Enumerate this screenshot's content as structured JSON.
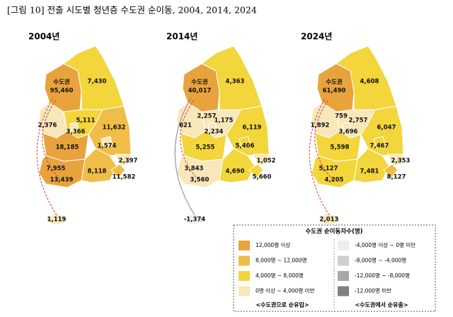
{
  "title": "[그림 10] 전출 시도별 청년층 수도권 순이동, 2004, 2014, 2024",
  "maps": [
    {
      "year": "2004년",
      "capital": {
        "label": "수도권",
        "value": "95,460",
        "color": "#e8a33d"
      },
      "regions": [
        "7,430",
        "2,376",
        null,
        "5,111",
        "3,366",
        "11,632",
        "1,574",
        "18,185",
        "2,397",
        "8,118",
        "11,582",
        "7,955",
        "13,439",
        "1,119"
      ],
      "colors": [
        "#f3d53c",
        "#f8e7b9",
        "#f8e7b9",
        "#f3d53c",
        "#f8e7b9",
        "#f0bd48",
        "#f8e7b9",
        "#e8a33d",
        "#f8e7b9",
        "#f0bd48",
        "#f0bd48",
        "#f3d53c",
        "#e8a33d",
        "#f8e7b9"
      ]
    },
    {
      "year": "2014년",
      "capital": {
        "label": "수도권",
        "value": "40,017",
        "color": "#e8a33d"
      },
      "regions": [
        "4,363",
        "621",
        "2,257",
        "1,175",
        "2,234",
        "6,119",
        "5,406",
        "5,255",
        "1,052",
        "4,690",
        "5,660",
        "3,843",
        "3,560",
        "-1,374"
      ],
      "colors": [
        "#f3d53c",
        "#f8e7b9",
        "#f8e7b9",
        "#f8e7b9",
        "#f8e7b9",
        "#f3d53c",
        "#f3d53c",
        "#f3d53c",
        "#f8e7b9",
        "#f3d53c",
        "#f3d53c",
        "#f8e7b9",
        "#f8e7b9",
        "#eeeeee"
      ]
    },
    {
      "year": "2024년",
      "capital": {
        "label": "수도권",
        "value": "61,490",
        "color": "#e8a33d"
      },
      "regions": [
        "4,608",
        "1,892",
        "759",
        "2,757",
        "3,696",
        "6,047",
        "7,467",
        "5,598",
        "2,353",
        "7,481",
        "8,127",
        "5,127",
        "4,205",
        "2,013"
      ],
      "colors": [
        "#f3d53c",
        "#f8e7b9",
        "#f8e7b9",
        "#f8e7b9",
        "#f8e7b9",
        "#f3d53c",
        "#f3d53c",
        "#f3d53c",
        "#f8e7b9",
        "#f3d53c",
        "#f0bd48",
        "#f3d53c",
        "#f3d53c",
        "#f8e7b9"
      ]
    }
  ],
  "legend": {
    "title": "수도권 순이동자수(명)",
    "inflow": {
      "items": [
        {
          "label": "12,000명 이상",
          "color": "#e8a33d"
        },
        {
          "label": "8,000명 ~ 12,000명",
          "color": "#f0bd48"
        },
        {
          "label": "4,000명 ~ 8,000명",
          "color": "#f3d53c"
        },
        {
          "label": "0명 이상 ~ 4,000명 미만",
          "color": "#f8e7b9"
        }
      ],
      "caption": "<수도권으로 순유입>"
    },
    "outflow": {
      "items": [
        {
          "label": "-4,000명 이상 ~ 0명 미만",
          "color": "#eeeeee"
        },
        {
          "label": "-8,000명 ~ -4,000명",
          "color": "#cfcfcf"
        },
        {
          "label": "-12,000명 ~ -8,000명",
          "color": "#a8a8a8"
        },
        {
          "label": "-12,000명 미만",
          "color": "#808080"
        }
      ],
      "caption": "<수도권에서 순유출>"
    }
  }
}
